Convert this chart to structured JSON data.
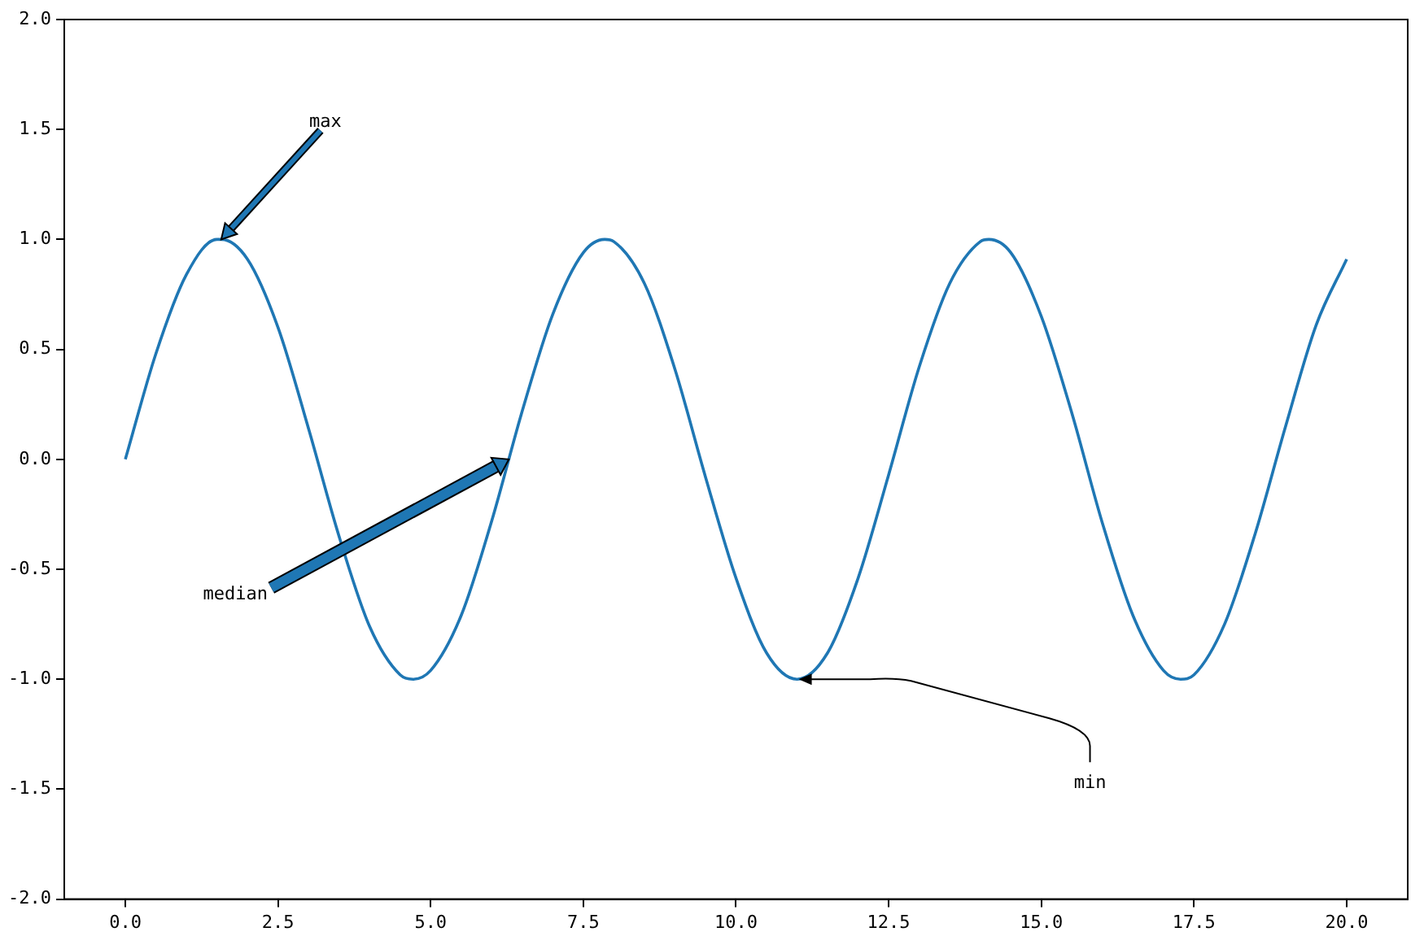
{
  "chart_data": {
    "type": "line",
    "x": [
      0,
      0.5,
      1,
      1.5,
      1.57,
      2,
      2.5,
      3,
      3.5,
      4,
      4.5,
      4.71,
      5,
      5.5,
      6,
      6.5,
      7,
      7.5,
      7.85,
      8,
      8.5,
      9,
      9.5,
      10,
      10.5,
      11,
      11.5,
      12,
      12.5,
      13,
      13.5,
      14,
      14.14,
      14.5,
      15,
      15.5,
      16,
      16.5,
      17,
      17.28,
      17.5,
      18,
      18.5,
      19,
      19.5,
      20
    ],
    "series": [
      {
        "color": "#1f77b4",
        "values": [
          0,
          0.48,
          0.84,
          1.0,
          1.0,
          0.91,
          0.6,
          0.14,
          -0.35,
          -0.76,
          -0.98,
          -1.0,
          -0.96,
          -0.71,
          -0.28,
          0.22,
          0.66,
          0.94,
          1.0,
          0.99,
          0.8,
          0.41,
          -0.08,
          -0.54,
          -0.88,
          -1.0,
          -0.88,
          -0.54,
          -0.07,
          0.42,
          0.8,
          0.99,
          1.0,
          0.94,
          0.65,
          0.21,
          -0.29,
          -0.71,
          -0.96,
          -1.0,
          -0.98,
          -0.75,
          -0.34,
          0.15,
          0.61,
          0.91
        ]
      }
    ],
    "xlim": [
      -1,
      21
    ],
    "ylim": [
      -2,
      2
    ],
    "xticks": [
      {
        "value": 0,
        "label": "0.0"
      },
      {
        "value": 2.5,
        "label": "2.5"
      },
      {
        "value": 5,
        "label": "5.0"
      },
      {
        "value": 7.5,
        "label": "7.5"
      },
      {
        "value": 10,
        "label": "10.0"
      },
      {
        "value": 12.5,
        "label": "12.5"
      },
      {
        "value": 15,
        "label": "15.0"
      },
      {
        "value": 17.5,
        "label": "17.5"
      },
      {
        "value": 20,
        "label": "20.0"
      }
    ],
    "yticks": [
      {
        "value": -2,
        "label": "-2.0"
      },
      {
        "value": -1.5,
        "label": "-1.5"
      },
      {
        "value": -1,
        "label": "-1.0"
      },
      {
        "value": -0.5,
        "label": "-0.5"
      },
      {
        "value": 0,
        "label": "0.0"
      },
      {
        "value": 0.5,
        "label": "0.5"
      },
      {
        "value": 1,
        "label": "1.0"
      },
      {
        "value": 1.5,
        "label": "1.5"
      },
      {
        "value": 2,
        "label": "2.0"
      }
    ],
    "annotations": [
      {
        "text": "max",
        "x": 1.57,
        "y": 1
      },
      {
        "text": "median",
        "x": 6.28,
        "y": 0
      },
      {
        "text": "min",
        "x": 11,
        "y": -1
      }
    ],
    "grid": false,
    "legend": false,
    "marker": "none",
    "line_style": "solid"
  }
}
